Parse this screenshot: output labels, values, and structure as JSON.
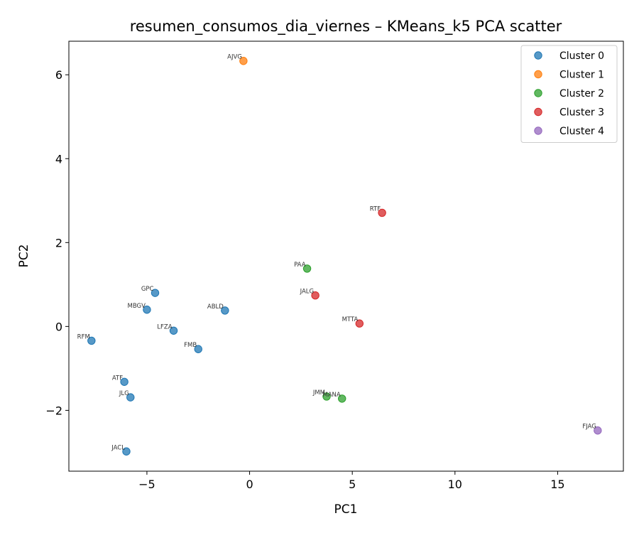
{
  "chart_data": {
    "type": "scatter",
    "title": "resumen_consumos_dia_viernes – KMeans_k5 PCA scatter",
    "xlabel": "PC1",
    "ylabel": "PC2",
    "xlim": [
      -8.8,
      18.2
    ],
    "ylim": [
      -3.45,
      6.8
    ],
    "xticks": [
      -5,
      0,
      5,
      10,
      15
    ],
    "xtick_labels": [
      "−5",
      "0",
      "5",
      "10",
      "15"
    ],
    "yticks": [
      -2,
      0,
      2,
      4,
      6
    ],
    "ytick_labels": [
      "−2",
      "0",
      "2",
      "4",
      "6"
    ],
    "grid": false,
    "legend_position": "top-right",
    "series": [
      {
        "name": "Cluster 0",
        "color": "#1f77b4",
        "points": [
          {
            "label": "GPC",
            "x": -4.6,
            "y": 0.8
          },
          {
            "label": "MBGV",
            "x": -5.0,
            "y": 0.4
          },
          {
            "label": "ABLD",
            "x": -1.2,
            "y": 0.38
          },
          {
            "label": "LFZA",
            "x": -3.7,
            "y": -0.1
          },
          {
            "label": "RFM",
            "x": -7.7,
            "y": -0.34
          },
          {
            "label": "FMB",
            "x": -2.5,
            "y": -0.54
          },
          {
            "label": "ATF",
            "x": -6.1,
            "y": -1.32
          },
          {
            "label": "JLG",
            "x": -5.8,
            "y": -1.69
          },
          {
            "label": "JACL",
            "x": -6.0,
            "y": -2.98
          }
        ]
      },
      {
        "name": "Cluster 1",
        "color": "#ff7f0e",
        "points": [
          {
            "label": "AJVG",
            "x": -0.3,
            "y": 6.33
          }
        ]
      },
      {
        "name": "Cluster 2",
        "color": "#2ca02c",
        "points": [
          {
            "label": "PAA",
            "x": 2.8,
            "y": 1.38
          },
          {
            "label": "JMM",
            "x": 3.75,
            "y": -1.67
          },
          {
            "label": "MANA",
            "x": 4.5,
            "y": -1.72
          }
        ]
      },
      {
        "name": "Cluster 3",
        "color": "#d62728",
        "points": [
          {
            "label": "RTF",
            "x": 6.45,
            "y": 2.71
          },
          {
            "label": "JALG",
            "x": 3.2,
            "y": 0.74
          },
          {
            "label": "MTTA",
            "x": 5.35,
            "y": 0.07
          }
        ]
      },
      {
        "name": "Cluster 4",
        "color": "#9467bd",
        "points": [
          {
            "label": "FJAG",
            "x": 16.95,
            "y": -2.48
          }
        ]
      }
    ]
  }
}
